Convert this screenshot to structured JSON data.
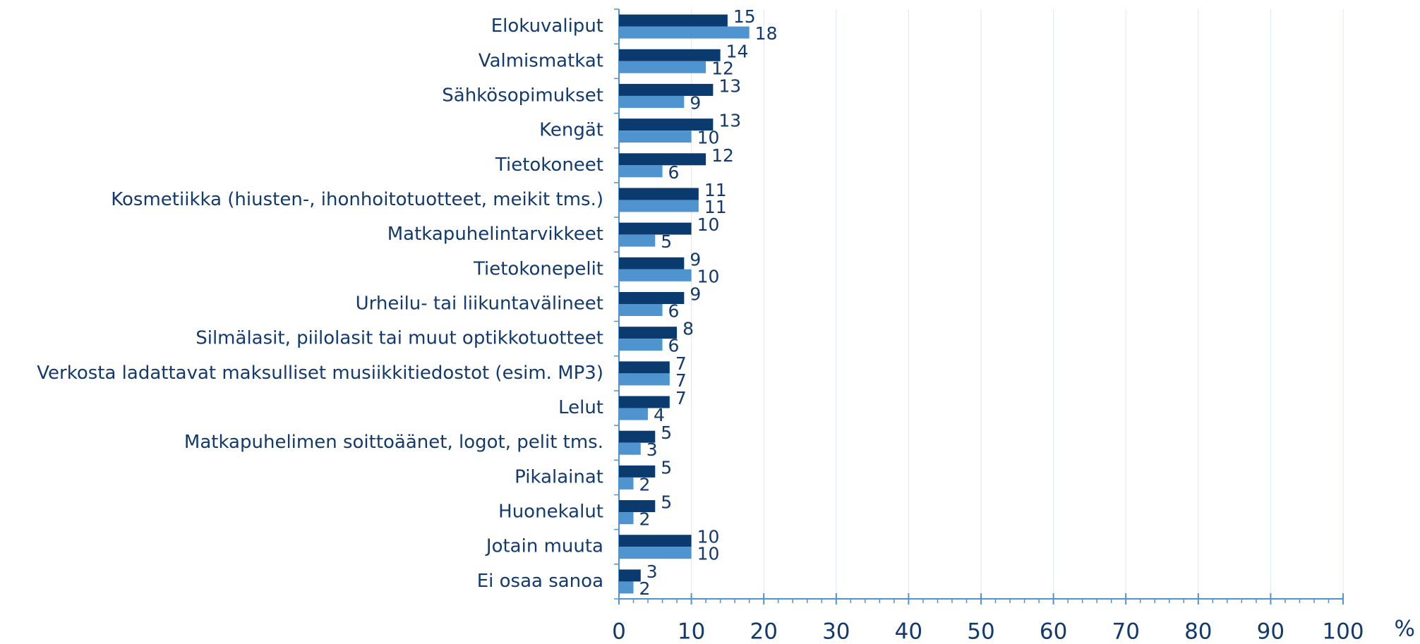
{
  "chart_data": {
    "type": "bar",
    "orientation": "horizontal",
    "categories": [
      "Elokuvaliput",
      "Valmismatkat",
      "Sähkösopimukset",
      "Kengät",
      "Tietokoneet",
      "Kosmetiikka (hiusten-, ihonhoitotuotteet, meikit tms.)",
      "Matkapuhelintarvikkeet",
      "Tietokonepelit",
      "Urheilu- tai liikuntavälineet",
      "Silmälasit, piilolasit tai muut optikkotuotteet",
      "Verkosta ladattavat maksulliset musiikkitiedostot (esim. MP3)",
      "Lelut",
      "Matkapuhelimen soittoäänet, logot, pelit tms.",
      "Pikalainat",
      "Huonekalut",
      "Jotain muuta",
      "Ei osaa sanoa"
    ],
    "series": [
      {
        "color": "#0b3a6f",
        "values": [
          15,
          14,
          13,
          13,
          12,
          11,
          10,
          9,
          9,
          8,
          7,
          7,
          5,
          5,
          5,
          10,
          3
        ]
      },
      {
        "color": "#4f93cf",
        "values": [
          18,
          12,
          9,
          10,
          6,
          11,
          5,
          10,
          6,
          6,
          7,
          4,
          3,
          2,
          2,
          10,
          2
        ]
      }
    ],
    "x_label": "%",
    "xlim": [
      0,
      100
    ],
    "xticks": [
      0,
      10,
      20,
      30,
      40,
      50,
      60,
      70,
      80,
      90,
      100
    ],
    "grid": true
  }
}
